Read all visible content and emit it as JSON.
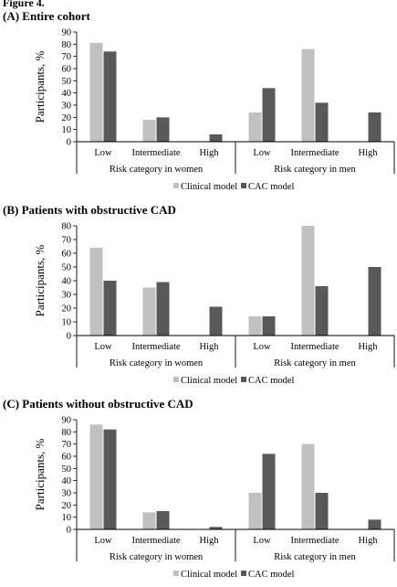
{
  "figure_label": "Figure 4.",
  "colors": {
    "clinical": "#c0c0c0",
    "cac": "#595959"
  },
  "chart_data": [
    {
      "type": "bar",
      "title": "(A) Entire cohort",
      "ylabel": "Participants, %",
      "ylim": [
        0,
        90
      ],
      "yticks": [
        0,
        10,
        20,
        30,
        40,
        50,
        60,
        70,
        80,
        90
      ],
      "categories": [
        "Low",
        "Intermediate",
        "High",
        "Low",
        "Intermediate",
        "High"
      ],
      "groups": [
        "Risk category in women",
        "Risk category in men"
      ],
      "legend_position": "bottom",
      "grid": false,
      "series": [
        {
          "name": "Clinical model",
          "color": "#c0c0c0",
          "values": [
            81,
            18,
            0,
            24,
            76,
            0
          ]
        },
        {
          "name": "CAC model",
          "color": "#595959",
          "values": [
            74,
            20,
            6,
            44,
            32,
            24
          ]
        }
      ]
    },
    {
      "type": "bar",
      "title": "(B) Patients with obstructive CAD",
      "ylabel": "Participants,  %",
      "ylim": [
        0,
        80
      ],
      "yticks": [
        0,
        10,
        20,
        30,
        40,
        50,
        60,
        70,
        80
      ],
      "categories": [
        "Low",
        "Intermediate",
        "High",
        "Low",
        "Intermediate",
        "High"
      ],
      "groups": [
        "Risk category in women",
        "Risk category in men"
      ],
      "legend_position": "bottom",
      "grid": false,
      "series": [
        {
          "name": "Clinical model",
          "color": "#c0c0c0",
          "values": [
            64,
            35,
            0,
            14,
            80,
            0
          ]
        },
        {
          "name": "CAC model",
          "color": "#595959",
          "values": [
            40,
            39,
            21,
            14,
            36,
            50
          ]
        }
      ]
    },
    {
      "type": "bar",
      "title": "(C) Patients without obstructive CAD",
      "ylabel": "Participants,  %",
      "ylim": [
        0,
        90
      ],
      "yticks": [
        0,
        10,
        20,
        30,
        40,
        50,
        60,
        70,
        80,
        90
      ],
      "categories": [
        "Low",
        "Intermediate",
        "High",
        "Low",
        "Intermediate",
        "High"
      ],
      "groups": [
        "Risk category in women",
        "Risk category in men"
      ],
      "legend_position": "bottom",
      "grid": false,
      "series": [
        {
          "name": "Clinical model",
          "color": "#c0c0c0",
          "values": [
            86,
            14,
            0,
            30,
            70,
            0
          ]
        },
        {
          "name": "CAC model",
          "color": "#595959",
          "values": [
            82,
            15,
            2,
            62,
            30,
            8
          ]
        }
      ]
    }
  ]
}
